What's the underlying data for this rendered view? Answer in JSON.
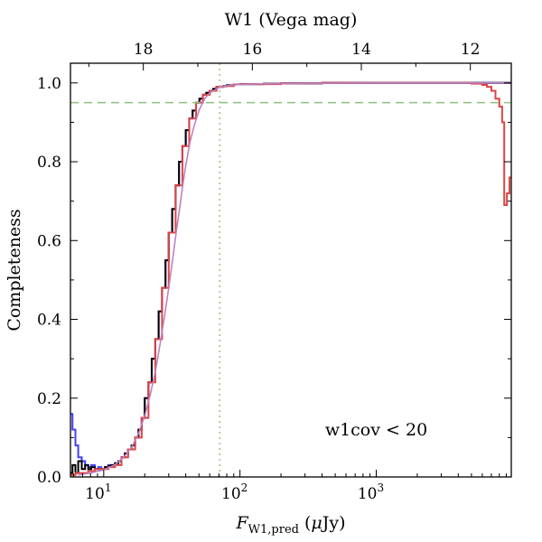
{
  "chart_data": {
    "type": "line",
    "title": "",
    "xlabel": "F",
    "xlabel_sub": "W1,pred",
    "xlabel_unit_open": " (",
    "xlabel_unit_mu": "μ",
    "xlabel_unit_rest": "Jy)",
    "ylabel": "Completeness",
    "top_xlabel": "W1 (Vega mag)",
    "annotation": "w1cov < 20",
    "x_scale": "log",
    "xlim": [
      5.7,
      9800
    ],
    "ylim": [
      0,
      1.05
    ],
    "grid": false,
    "legend": "none",
    "x_ticks": [
      {
        "value": 10,
        "base": "10",
        "exp": "1"
      },
      {
        "value": 100,
        "base": "10",
        "exp": "2"
      },
      {
        "value": 1000,
        "base": "10",
        "exp": "3"
      }
    ],
    "y_ticks": [
      {
        "value": 0.0,
        "label": "0.0"
      },
      {
        "value": 0.2,
        "label": "0.2"
      },
      {
        "value": 0.4,
        "label": "0.4"
      },
      {
        "value": 0.6,
        "label": "0.6"
      },
      {
        "value": 0.8,
        "label": "0.8"
      },
      {
        "value": 1.0,
        "label": "1.0"
      }
    ],
    "top_ticks": [
      {
        "mag": 18,
        "label": "18"
      },
      {
        "mag": 16,
        "label": "16"
      },
      {
        "mag": 14,
        "label": "14"
      },
      {
        "mag": 12,
        "label": "12"
      }
    ],
    "mag_zero_point_uJy": 309540000,
    "reference_lines": [
      {
        "orientation": "horizontal",
        "value": 0.95,
        "color": "#8fbf7f",
        "style": "dashed"
      },
      {
        "orientation": "vertical",
        "value": 71,
        "color": "#a8c38a",
        "style": "dotted"
      }
    ],
    "series": [
      {
        "color": "#4040ff",
        "style": "step",
        "x": [
          5.7,
          5.9,
          6.2,
          6.5,
          6.9,
          7.3,
          7.7,
          8.1,
          8.6,
          9.1,
          9.6,
          10.2,
          10.8,
          11.4,
          12.1,
          12.8,
          13.5,
          14.3,
          15.1,
          16,
          17,
          18,
          19,
          20,
          21.3,
          22.5,
          23.9,
          25.3,
          26.8,
          28.4,
          30,
          31.8,
          33.7,
          35.7,
          37.8,
          40,
          42.4,
          44.9,
          47.6,
          50.4,
          53.4,
          56.6,
          60,
          63.5,
          67.3,
          71.3,
          75.5,
          80,
          90,
          100,
          150,
          200,
          400,
          1000,
          5000,
          9800
        ],
        "y": [
          0.16,
          0.12,
          0.08,
          0.05,
          0.04,
          0.03,
          0.025,
          0.03,
          0.02,
          0.025,
          0.02,
          0.025,
          0.03,
          0.03,
          0.035,
          0.04,
          0.05,
          0.06,
          0.07,
          0.08,
          0.1,
          0.12,
          0.15,
          0.2,
          0.24,
          0.3,
          0.35,
          0.42,
          0.48,
          0.55,
          0.62,
          0.68,
          0.74,
          0.8,
          0.84,
          0.88,
          0.91,
          0.93,
          0.95,
          0.96,
          0.97,
          0.975,
          0.98,
          0.985,
          0.99,
          0.99,
          0.992,
          0.994,
          0.996,
          0.997,
          0.998,
          0.999,
          1.0,
          1.0,
          1.0,
          1.0
        ]
      },
      {
        "color": "#000000",
        "style": "step",
        "x": [
          5.7,
          5.9,
          6.2,
          6.5,
          6.9,
          7.3,
          7.7,
          8.1,
          8.6,
          9.1,
          9.6,
          10.2,
          10.8,
          11.4,
          12.1,
          12.8,
          13.5,
          14.3,
          15.1,
          16,
          17,
          18,
          19,
          20,
          21.3,
          22.5,
          23.9,
          25.3,
          26.8,
          28.4,
          30,
          31.8,
          33.7,
          35.7,
          37.8,
          40,
          42.4,
          44.9,
          47.6,
          50.4,
          53.4,
          56.6,
          60,
          63.5,
          67.3,
          71.3,
          75.5,
          80,
          90,
          100,
          150,
          200,
          400,
          1000,
          5000,
          9800
        ],
        "y": [
          0.01,
          0.03,
          0.01,
          0.04,
          0.02,
          0.03,
          0.02,
          0.025,
          0.02,
          0.02,
          0.02,
          0.025,
          0.028,
          0.03,
          0.035,
          0.04,
          0.05,
          0.06,
          0.07,
          0.08,
          0.1,
          0.12,
          0.15,
          0.2,
          0.24,
          0.3,
          0.35,
          0.42,
          0.48,
          0.55,
          0.62,
          0.68,
          0.74,
          0.8,
          0.84,
          0.88,
          0.91,
          0.93,
          0.95,
          0.96,
          0.97,
          0.975,
          0.98,
          0.985,
          0.99,
          0.99,
          0.992,
          0.994,
          0.996,
          0.997,
          0.998,
          0.999,
          1.0,
          1.0,
          1.0,
          1.0
        ]
      },
      {
        "color": "#dd4444",
        "style": "step",
        "x": [
          5.7,
          6.2,
          6.9,
          7.7,
          8.6,
          9.6,
          10.8,
          12.1,
          13.5,
          15.1,
          17,
          19,
          21.3,
          23.9,
          26.8,
          30,
          33.7,
          37.8,
          42.4,
          47.6,
          53.4,
          60,
          67.3,
          75.5,
          90,
          100,
          200,
          400,
          1000,
          3000,
          5000,
          6000,
          6500,
          7000,
          7500,
          8000,
          8400,
          8700,
          9100,
          9500,
          9800
        ],
        "y": [
          0.005,
          0.01,
          0.01,
          0.015,
          0.02,
          0.02,
          0.025,
          0.03,
          0.05,
          0.07,
          0.1,
          0.15,
          0.24,
          0.35,
          0.48,
          0.62,
          0.74,
          0.84,
          0.91,
          0.95,
          0.97,
          0.98,
          0.99,
          0.992,
          0.996,
          0.997,
          0.999,
          1.0,
          1.0,
          1.0,
          0.998,
          0.995,
          0.99,
          0.98,
          0.96,
          0.94,
          0.9,
          0.69,
          0.72,
          0.76,
          0.76
        ]
      },
      {
        "color": "#c080c0",
        "style": "smooth",
        "x": [
          6.5,
          8,
          10,
          12,
          14,
          16,
          18,
          20,
          22,
          24,
          26,
          28,
          30,
          32,
          34,
          36,
          38,
          40,
          43,
          46,
          50,
          55,
          60,
          70,
          80,
          100,
          150,
          300,
          1000,
          9800
        ],
        "y": [
          0.005,
          0.01,
          0.018,
          0.03,
          0.05,
          0.075,
          0.11,
          0.155,
          0.21,
          0.27,
          0.34,
          0.41,
          0.48,
          0.55,
          0.62,
          0.68,
          0.74,
          0.79,
          0.85,
          0.89,
          0.93,
          0.96,
          0.975,
          0.988,
          0.993,
          0.996,
          0.998,
          0.999,
          1.0,
          1.0
        ]
      }
    ]
  }
}
